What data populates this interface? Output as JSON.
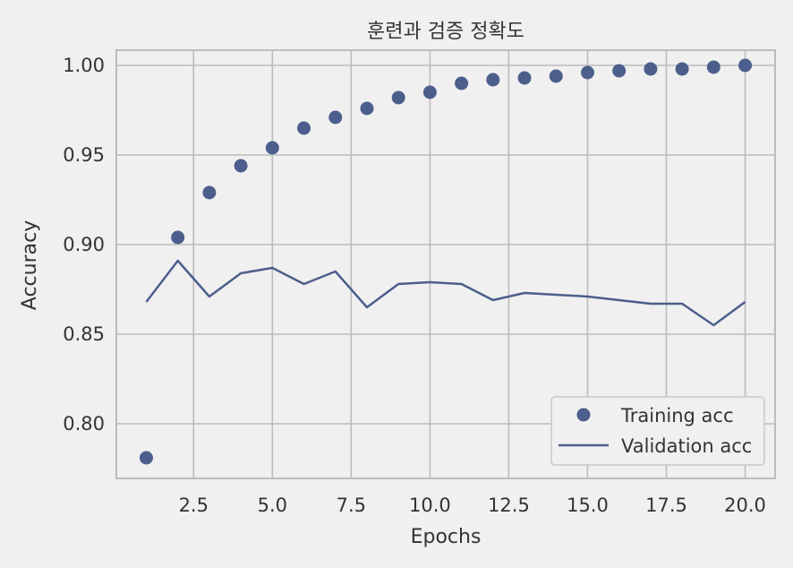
{
  "chart_data": {
    "type": "scatter",
    "title": "훈련과 검증 정확도",
    "xlabel": "Epochs",
    "ylabel": "Accuracy",
    "xlim": [
      0.05,
      20.95
    ],
    "ylim": [
      0.7695,
      1.0085
    ],
    "xticks": [
      2.5,
      5.0,
      7.5,
      10.0,
      12.5,
      15.0,
      17.5,
      20.0
    ],
    "xtick_labels": [
      "2.5",
      "5.0",
      "7.5",
      "10.0",
      "12.5",
      "15.0",
      "17.5",
      "20.0"
    ],
    "yticks": [
      0.8,
      0.85,
      0.9,
      0.95,
      1.0
    ],
    "ytick_labels": [
      "0.80",
      "0.85",
      "0.90",
      "0.95",
      "1.00"
    ],
    "grid": true,
    "legend_position": "bottom-right",
    "series": [
      {
        "name": "Training acc",
        "mark": "dot",
        "color": "#4c5e8c",
        "x": [
          1,
          2,
          3,
          4,
          5,
          6,
          7,
          8,
          9,
          10,
          11,
          12,
          13,
          14,
          15,
          16,
          17,
          18,
          19,
          20
        ],
        "y": [
          0.781,
          0.904,
          0.929,
          0.944,
          0.954,
          0.965,
          0.971,
          0.976,
          0.982,
          0.985,
          0.99,
          0.992,
          0.993,
          0.994,
          0.996,
          0.997,
          0.998,
          0.998,
          0.999,
          1.0
        ]
      },
      {
        "name": "Validation acc",
        "mark": "line",
        "color": "#4c5e8c",
        "x": [
          1,
          2,
          3,
          4,
          5,
          6,
          7,
          8,
          9,
          10,
          11,
          12,
          13,
          14,
          15,
          16,
          17,
          18,
          19,
          20
        ],
        "y": [
          0.868,
          0.891,
          0.871,
          0.884,
          0.887,
          0.878,
          0.885,
          0.865,
          0.878,
          0.879,
          0.878,
          0.869,
          0.873,
          0.872,
          0.871,
          0.869,
          0.867,
          0.867,
          0.855,
          0.868
        ]
      }
    ]
  }
}
